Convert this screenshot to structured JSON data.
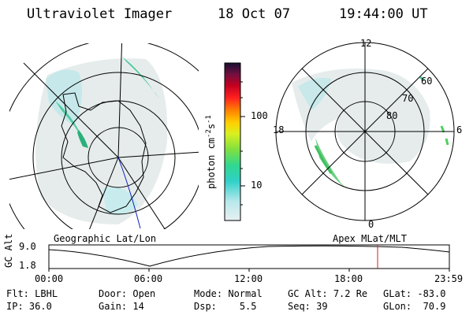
{
  "header": {
    "instrument": "Ultraviolet Imager",
    "date": "18 Oct 07",
    "time": "19:44:00 UT"
  },
  "left_map": {
    "caption": "Geographic Lat/Lon"
  },
  "right_map": {
    "caption": "Apex MLat/MLT",
    "mlt_labels": [
      "12",
      "18",
      "6",
      "0"
    ],
    "lat_labels": [
      "60",
      "70",
      "80"
    ]
  },
  "colorbar": {
    "label": "photon cm",
    "label_exp1": "-2",
    "label_mid": "s",
    "label_exp2": "-1",
    "ticks": [
      "100",
      "10"
    ],
    "scale": "log"
  },
  "altitude_plot": {
    "ylabel": "GC Alt",
    "yticks": [
      "9.0",
      "1.8"
    ],
    "xticks": [
      "00:00",
      "06:00",
      "12:00",
      "18:00",
      "23:59"
    ],
    "marker_time": "19:44",
    "marker_color": "#d02020"
  },
  "params": {
    "flt_label": "Flt:",
    "flt_value": "LBHL",
    "ip_label": "IP:",
    "ip_value": "36.0",
    "door_label": "Door:",
    "door_value": "Open",
    "gain_label": "Gain:",
    "gain_value": "14",
    "mode_label": "Mode:",
    "mode_value": "Normal",
    "dsp_label": "Dsp:",
    "dsp_value": "5.5",
    "gcalt_label": "GC Alt:",
    "gcalt_value": "7.2 Re",
    "seq_label": "Seq:",
    "seq_value": "39",
    "glat_label": "GLat:",
    "glat_value": "-83.0",
    "glon_label": "GLon:",
    "glon_value": "70.9"
  }
}
